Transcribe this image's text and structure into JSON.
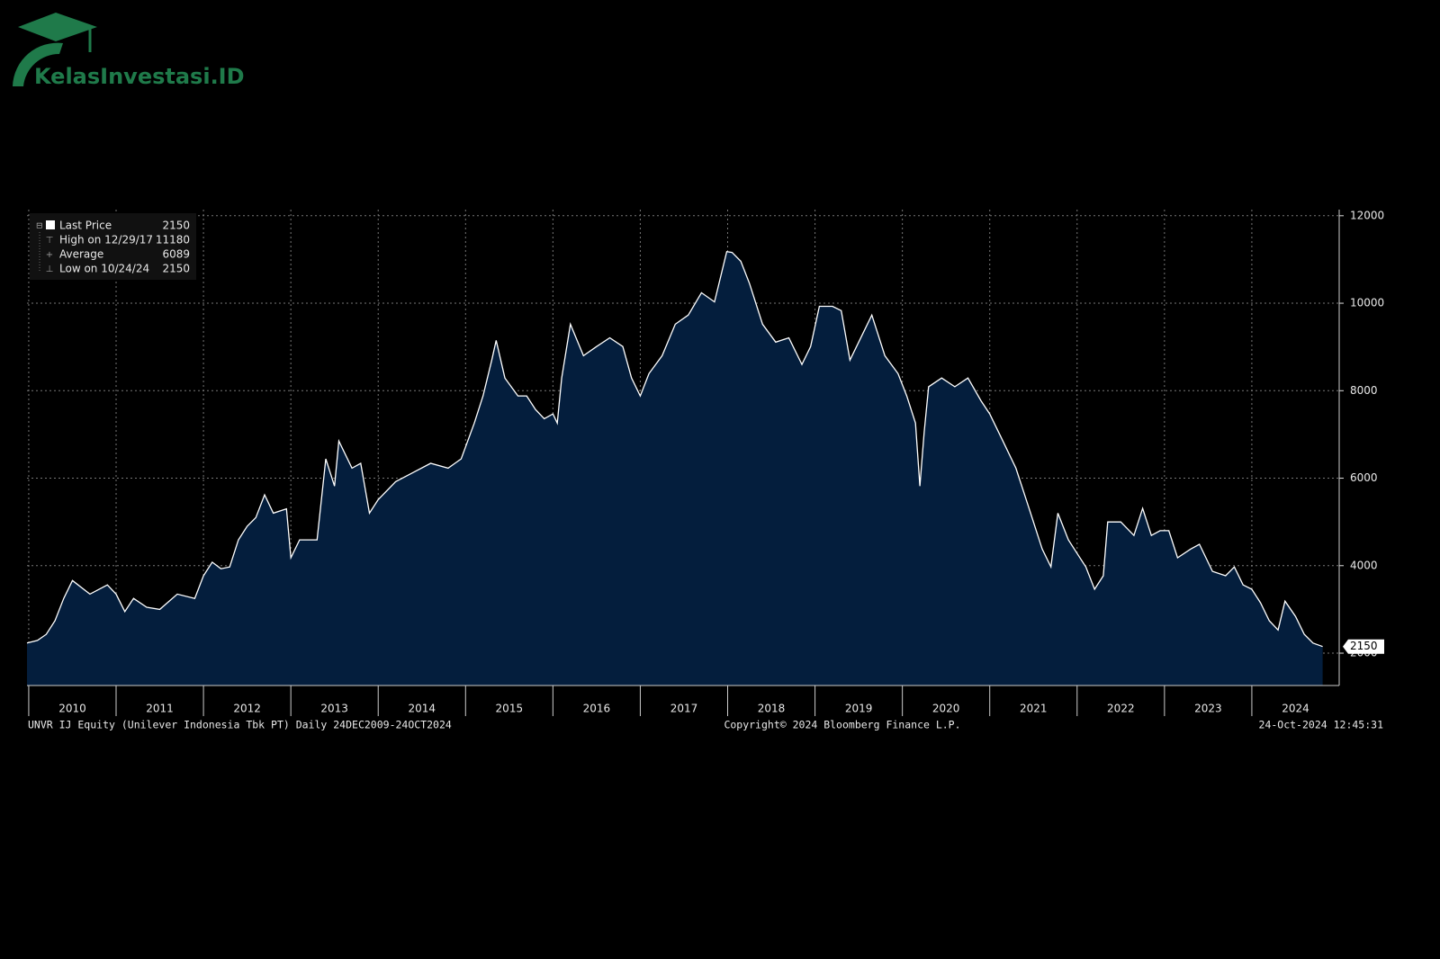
{
  "watermark": "KelasInvestasi.ID",
  "chart_data": {
    "type": "area",
    "legend": [
      {
        "label": "Last Price",
        "value": 2150
      },
      {
        "label": "High on 12/29/17",
        "value": 11180
      },
      {
        "label": "Average",
        "value": 6089
      },
      {
        "label": "Low on 10/24/24",
        "value": 2150
      }
    ],
    "x": [
      2009.98,
      2010.1,
      2010.2,
      2010.3,
      2010.4,
      2010.5,
      2010.7,
      2010.9,
      2011.0,
      2011.1,
      2011.2,
      2011.35,
      2011.5,
      2011.7,
      2011.9,
      2012.0,
      2012.1,
      2012.2,
      2012.3,
      2012.4,
      2012.5,
      2012.6,
      2012.7,
      2012.8,
      2012.95,
      2013.0,
      2013.1,
      2013.2,
      2013.3,
      2013.4,
      2013.5,
      2013.55,
      2013.7,
      2013.8,
      2013.9,
      2014.0,
      2014.2,
      2014.4,
      2014.6,
      2014.8,
      2014.95,
      2015.1,
      2015.2,
      2015.3,
      2015.35,
      2015.45,
      2015.6,
      2015.7,
      2015.8,
      2015.9,
      2016.0,
      2016.05,
      2016.1,
      2016.2,
      2016.35,
      2016.5,
      2016.65,
      2016.8,
      2016.9,
      2017.0,
      2017.1,
      2017.25,
      2017.4,
      2017.55,
      2017.7,
      2017.85,
      2017.99,
      2018.05,
      2018.15,
      2018.25,
      2018.4,
      2018.55,
      2018.7,
      2018.85,
      2018.95,
      2019.05,
      2019.2,
      2019.3,
      2019.4,
      2019.5,
      2019.65,
      2019.8,
      2019.95,
      2020.05,
      2020.15,
      2020.2,
      2020.25,
      2020.3,
      2020.45,
      2020.6,
      2020.75,
      2020.9,
      2021.0,
      2021.15,
      2021.3,
      2021.45,
      2021.6,
      2021.7,
      2021.78,
      2021.9,
      2022.0,
      2022.1,
      2022.2,
      2022.3,
      2022.35,
      2022.5,
      2022.65,
      2022.75,
      2022.85,
      2022.95,
      2023.05,
      2023.15,
      2023.3,
      2023.4,
      2023.55,
      2023.7,
      2023.8,
      2023.9,
      2024.0,
      2024.1,
      2024.2,
      2024.3,
      2024.38,
      2024.5,
      2024.6,
      2024.7,
      2024.81
    ],
    "series": [
      {
        "color": "#ffffff",
        "fill": "#041e3d",
        "values": [
          2230,
          2290,
          2430,
          2740,
          3250,
          3660,
          3350,
          3560,
          3350,
          2950,
          3250,
          3050,
          3000,
          3350,
          3250,
          3770,
          4080,
          3930,
          3970,
          4590,
          4900,
          5100,
          5620,
          5200,
          5300,
          4180,
          4590,
          4590,
          4590,
          6440,
          5820,
          6850,
          6230,
          6340,
          5200,
          5510,
          5920,
          6130,
          6340,
          6230,
          6440,
          7260,
          7880,
          8700,
          9150,
          8290,
          7880,
          7880,
          7570,
          7360,
          7470,
          7260,
          8290,
          9520,
          8800,
          9010,
          9210,
          9010,
          8290,
          7880,
          8390,
          8800,
          9520,
          9730,
          10240,
          10030,
          11180,
          11160,
          10960,
          10450,
          9520,
          9110,
          9210,
          8600,
          9010,
          9930,
          9930,
          9830,
          8700,
          9110,
          9730,
          8800,
          8390,
          7880,
          7260,
          5820,
          7060,
          8090,
          8290,
          8090,
          8290,
          7770,
          7470,
          6850,
          6230,
          5310,
          4380,
          3970,
          5200,
          4590,
          4280,
          3970,
          3460,
          3770,
          5000,
          5000,
          4690,
          5310,
          4690,
          4800,
          4800,
          4180,
          4380,
          4490,
          3870,
          3770,
          3970,
          3560,
          3460,
          3150,
          2740,
          2530,
          3190,
          2840,
          2430,
          2230,
          2150
        ]
      }
    ],
    "xlim": [
      2009.98,
      2025.0
    ],
    "xticks": [
      2010,
      2011,
      2012,
      2013,
      2014,
      2015,
      2016,
      2017,
      2018,
      2019,
      2020,
      2021,
      2022,
      2023,
      2024
    ],
    "ylim": [
      1260,
      12140
    ],
    "yticks": [
      2000,
      4000,
      6000,
      8000,
      10000,
      12000
    ],
    "grid": true,
    "legend_position": "upper left",
    "footer_left": "UNVR IJ Equity (Unilever Indonesia Tbk PT)  Daily 24DEC2009-24OCT2024",
    "footer_center": "Copyright© 2024 Bloomberg Finance L.P.",
    "footer_right": "24-Oct-2024 12:45:31"
  }
}
